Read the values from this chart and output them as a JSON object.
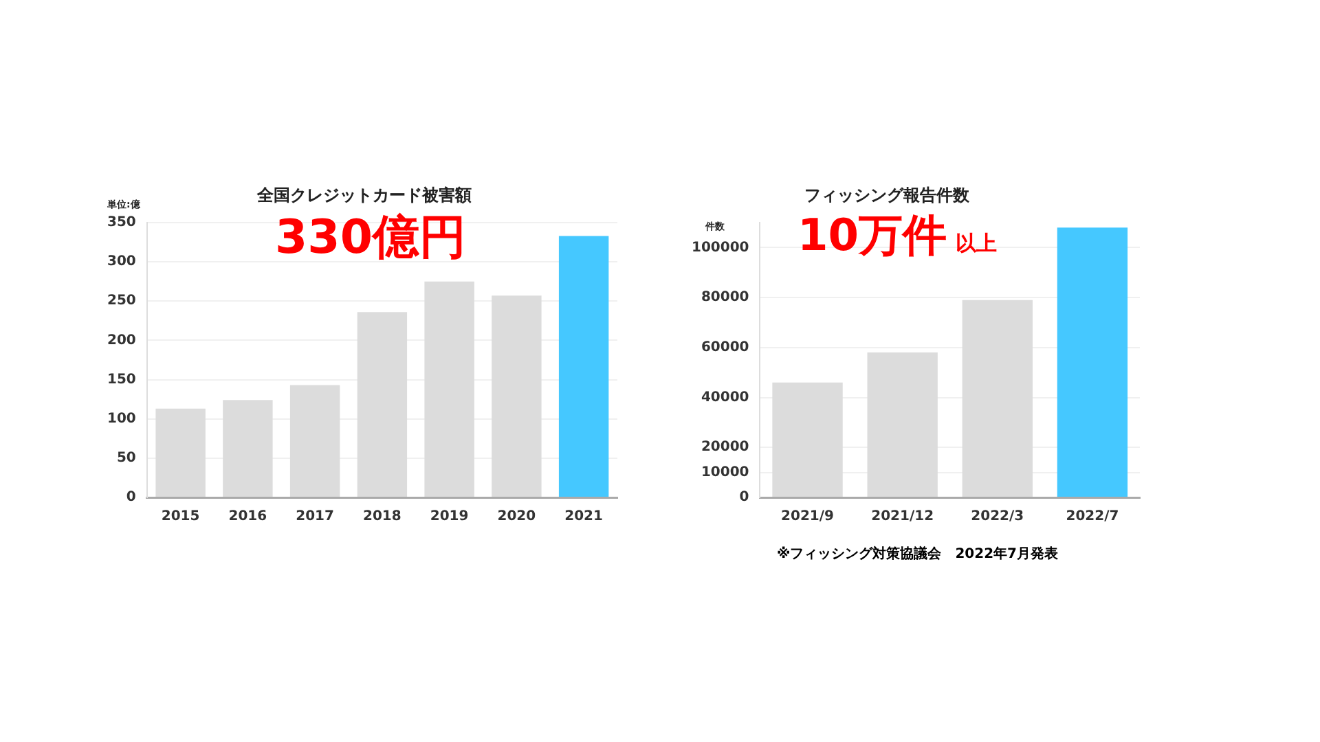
{
  "chart_data": [
    {
      "type": "bar",
      "title": "全国クレジットカード被害額",
      "ylabel": "単位:億",
      "annotations": [
        "330億円"
      ],
      "categories": [
        "2015",
        "2016",
        "2017",
        "2018",
        "2019",
        "2020",
        "2021"
      ],
      "values": [
        113,
        124,
        143,
        236,
        275,
        257,
        333
      ],
      "colors": [
        "#dcdcdc",
        "#dcdcdc",
        "#dcdcdc",
        "#dcdcdc",
        "#dcdcdc",
        "#dcdcdc",
        "#45c8ff"
      ],
      "ylim": [
        0,
        350
      ],
      "yticks": [
        0,
        50,
        100,
        150,
        200,
        250,
        300,
        350
      ],
      "grid": "y",
      "legend": false
    },
    {
      "type": "bar",
      "title": "フィッシング報告件数",
      "ylabel": "件数",
      "annotations": [
        "10万件",
        "以上",
        "※フィッシング対策協議会　2022年7月発表"
      ],
      "categories": [
        "2021/9",
        "2021/12",
        "2022/3",
        "2022/7"
      ],
      "values": [
        46000,
        58000,
        79000,
        108000
      ],
      "colors": [
        "#dcdcdc",
        "#dcdcdc",
        "#dcdcdc",
        "#45c8ff"
      ],
      "ylim": [
        0,
        110000
      ],
      "yticks": [
        0,
        10000,
        20000,
        40000,
        60000,
        80000,
        100000
      ],
      "grid": "y",
      "legend": false
    }
  ]
}
